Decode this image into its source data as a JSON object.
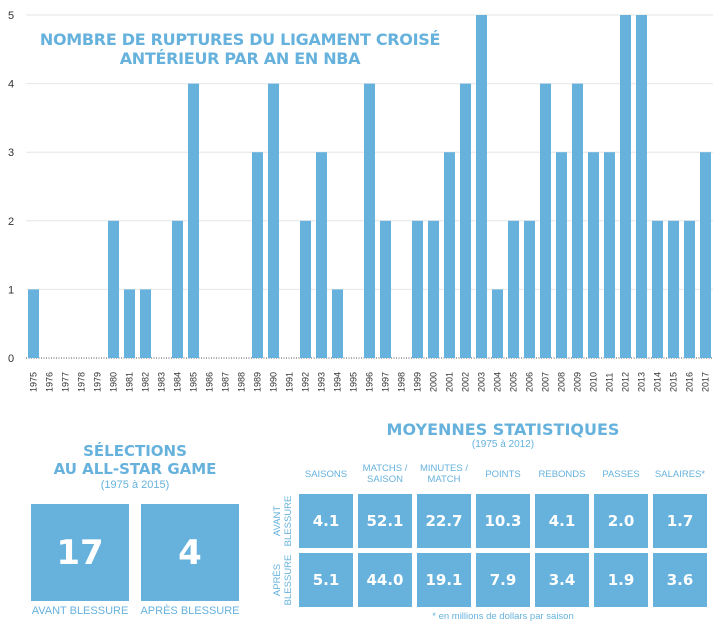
{
  "chart_data": {
    "type": "bar",
    "title": "NOMBRE DE RUPTURES DU LIGAMENT CROISÉ ANTÉRIEUR PAR AN EN NBA",
    "title_lines": [
      "NOMBRE DE RUPTURES DU LIGAMENT CROISÉ",
      "ANTÉRIEUR PAR AN EN NBA"
    ],
    "xlabel": "",
    "ylabel": "",
    "ylim": [
      0,
      5
    ],
    "yticks": [
      "0",
      "1",
      "2",
      "3",
      "4",
      "5"
    ],
    "grid": true,
    "color": "#66b2dd",
    "categories": [
      "1975",
      "1976",
      "1977",
      "1978",
      "1979",
      "1980",
      "1981",
      "1982",
      "1983",
      "1984",
      "1985",
      "1986",
      "1987",
      "1988",
      "1989",
      "1990",
      "1991",
      "1992",
      "1993",
      "1994",
      "1995",
      "1996",
      "1997",
      "1998",
      "1999",
      "2000",
      "2001",
      "2002",
      "2003",
      "2004",
      "2005",
      "2006",
      "2007",
      "2008",
      "2009",
      "2010",
      "2011",
      "2012",
      "2013",
      "2014",
      "2015",
      "2016",
      "2017"
    ],
    "values": [
      1,
      0,
      0,
      0,
      0,
      2,
      1,
      1,
      0,
      2,
      4,
      0,
      0,
      0,
      3,
      4,
      0,
      2,
      3,
      1,
      0,
      4,
      2,
      0,
      2,
      2,
      3,
      4,
      5,
      1,
      2,
      2,
      4,
      3,
      4,
      3,
      3,
      5,
      5,
      2,
      2,
      2,
      3
    ]
  },
  "allstar": {
    "title_line1": "SÉLECTIONS",
    "title_line2": "AU ALL-STAR GAME",
    "subtitle": "(1975 à 2015)",
    "before_value": "17",
    "after_value": "4",
    "before_label": "AVANT BLESSURE",
    "after_label": "APRÈS BLESSURE"
  },
  "stats": {
    "title": "MOYENNES STATISTIQUES",
    "subtitle": "(1975 à 2012)",
    "columns": [
      [
        "SAISONS"
      ],
      [
        "MATCHS /",
        "SAISON"
      ],
      [
        "MINUTES /",
        "MATCH"
      ],
      [
        "POINTS"
      ],
      [
        "REBONDS"
      ],
      [
        "PASSES"
      ],
      [
        "SALAIRES*"
      ]
    ],
    "rows": [
      {
        "label": [
          "AVANT",
          "BLESSURE"
        ],
        "values": [
          "4.1",
          "52.1",
          "22.7",
          "10.3",
          "4.1",
          "2.0",
          "1.7"
        ]
      },
      {
        "label": [
          "APRÈS",
          "BLESSURE"
        ],
        "values": [
          "5.1",
          "44.0",
          "19.1",
          "7.9",
          "3.4",
          "1.9",
          "3.6"
        ]
      }
    ],
    "footnote": "* en millions de dollars par saison"
  }
}
